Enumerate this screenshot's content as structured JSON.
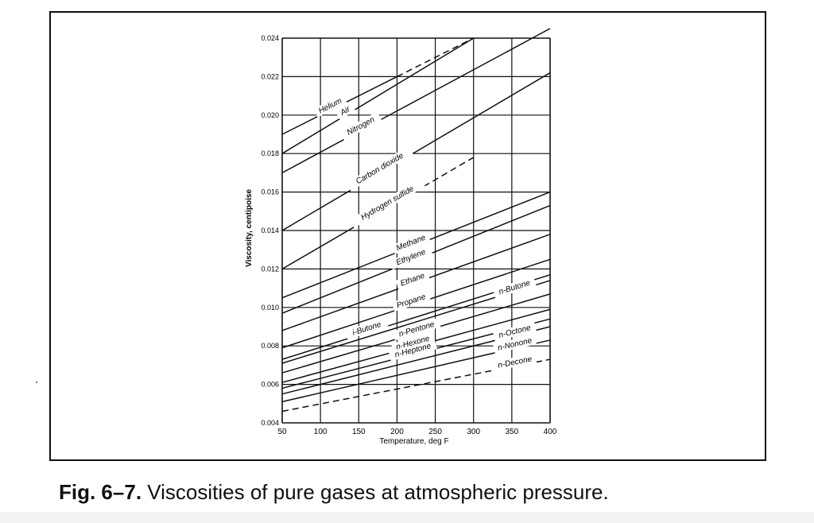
{
  "caption": {
    "number": "Fig. 6–7.",
    "text": " Viscosities of pure gases at atmospheric pressure."
  },
  "chart_data": {
    "type": "line",
    "title": "",
    "xlabel": "Temperature, deg F",
    "ylabel": "Viscosity, centipoise",
    "xlim": [
      50,
      400
    ],
    "ylim": [
      0.004,
      0.024
    ],
    "x_ticks": [
      "50",
      "100",
      "150",
      "200",
      "250",
      "300",
      "350",
      "400"
    ],
    "y_ticks": [
      "0.004",
      "0.006",
      "0.008",
      "0.010",
      "0.012",
      "0.014",
      "0.016",
      "0.018",
      "0.020",
      "0.022",
      "0.024"
    ],
    "grid": true,
    "series": [
      {
        "name": "Helium",
        "x": [
          50,
          300
        ],
        "y": [
          0.019,
          0.024
        ],
        "dash_from": 200
      },
      {
        "name": "Air",
        "x": [
          50,
          300
        ],
        "y": [
          0.018,
          0.024
        ]
      },
      {
        "name": "Nitrogen",
        "x": [
          50,
          400
        ],
        "y": [
          0.017,
          0.0245
        ]
      },
      {
        "name": "Carbon dioxide",
        "x": [
          50,
          400
        ],
        "y": [
          0.014,
          0.0222
        ]
      },
      {
        "name": "Hydrogen sulfide",
        "x": [
          50,
          300
        ],
        "y": [
          0.012,
          0.0178
        ],
        "dash_from": 200
      },
      {
        "name": "Methane",
        "x": [
          50,
          400
        ],
        "y": [
          0.0105,
          0.016
        ]
      },
      {
        "name": "Ethylene",
        "x": [
          50,
          400
        ],
        "y": [
          0.0097,
          0.0153
        ]
      },
      {
        "name": "Ethane",
        "x": [
          50,
          400
        ],
        "y": [
          0.0088,
          0.0138
        ]
      },
      {
        "name": "Propane",
        "x": [
          50,
          400
        ],
        "y": [
          0.0079,
          0.0125
        ]
      },
      {
        "name": "i-Butone",
        "x": [
          50,
          400
        ],
        "y": [
          0.0073,
          0.0117
        ]
      },
      {
        "name": "n-Butone",
        "x": [
          50,
          400
        ],
        "y": [
          0.0071,
          0.0114
        ]
      },
      {
        "name": "n-Pentone",
        "x": [
          50,
          400
        ],
        "y": [
          0.0066,
          0.0107
        ]
      },
      {
        "name": "n-Hexone",
        "x": [
          50,
          400
        ],
        "y": [
          0.0061,
          0.0099
        ]
      },
      {
        "name": "n-Heptone",
        "x": [
          50,
          400
        ],
        "y": [
          0.0058,
          0.0094
        ]
      },
      {
        "name": "n-Octone",
        "x": [
          50,
          400
        ],
        "y": [
          0.0055,
          0.009
        ]
      },
      {
        "name": "n-Nonone",
        "x": [
          50,
          400
        ],
        "y": [
          0.0051,
          0.0083
        ]
      },
      {
        "name": "n-Decone",
        "x": [
          50,
          400
        ],
        "y": [
          0.0046,
          0.0073
        ],
        "dashed": true
      }
    ],
    "annotations": [
      "Helium",
      "Air",
      "Nitrogen",
      "Carbon dioxide",
      "Hydrogen sulfide",
      "Methane",
      "Ethylene",
      "Ethane",
      "Propane",
      "i-Butone",
      "n-Butone",
      "n-Pentone",
      "n-Hexone",
      "n-Heptone",
      "n-Octone",
      "n-Nonone",
      "n-Decone"
    ]
  }
}
